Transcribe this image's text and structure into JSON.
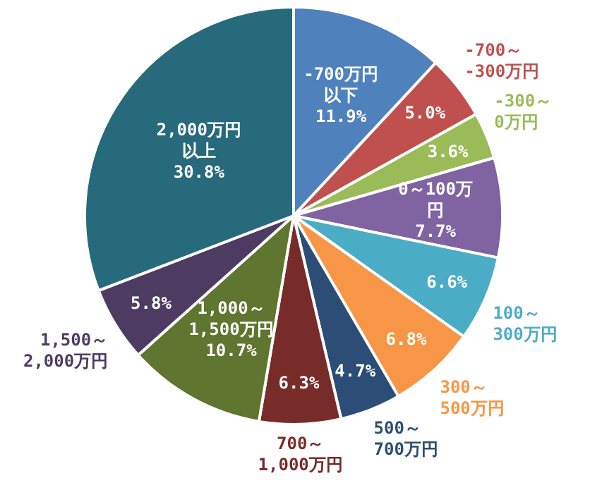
{
  "chart_data": {
    "type": "pie",
    "categories": [
      "-700万円以下",
      "-700～\n-300万円",
      "-300～\n0万円",
      "0～100万円",
      "100～\n300万円",
      "300～\n500万円",
      "500～\n700万円",
      "700～\n1,000万円",
      "1,000～\n1,500万円",
      "1,500～\n2,000万円",
      "2,000万円以上"
    ],
    "values": [
      11.9,
      5.0,
      3.6,
      7.7,
      6.6,
      6.8,
      4.7,
      6.3,
      10.7,
      5.8,
      30.8
    ],
    "value_labels": [
      "11.9%",
      "5.0%",
      "3.6%",
      "7.7%",
      "6.6%",
      "6.8%",
      "4.7%",
      "6.3%",
      "10.7%",
      "5.8%",
      "30.8%"
    ],
    "colors": [
      "#4f81bd",
      "#c0504d",
      "#9bbb59",
      "#8064a2",
      "#4bacc6",
      "#f79646",
      "#2c4d75",
      "#772c2a",
      "#5f7530",
      "#4d3b62",
      "#276a7c"
    ]
  }
}
